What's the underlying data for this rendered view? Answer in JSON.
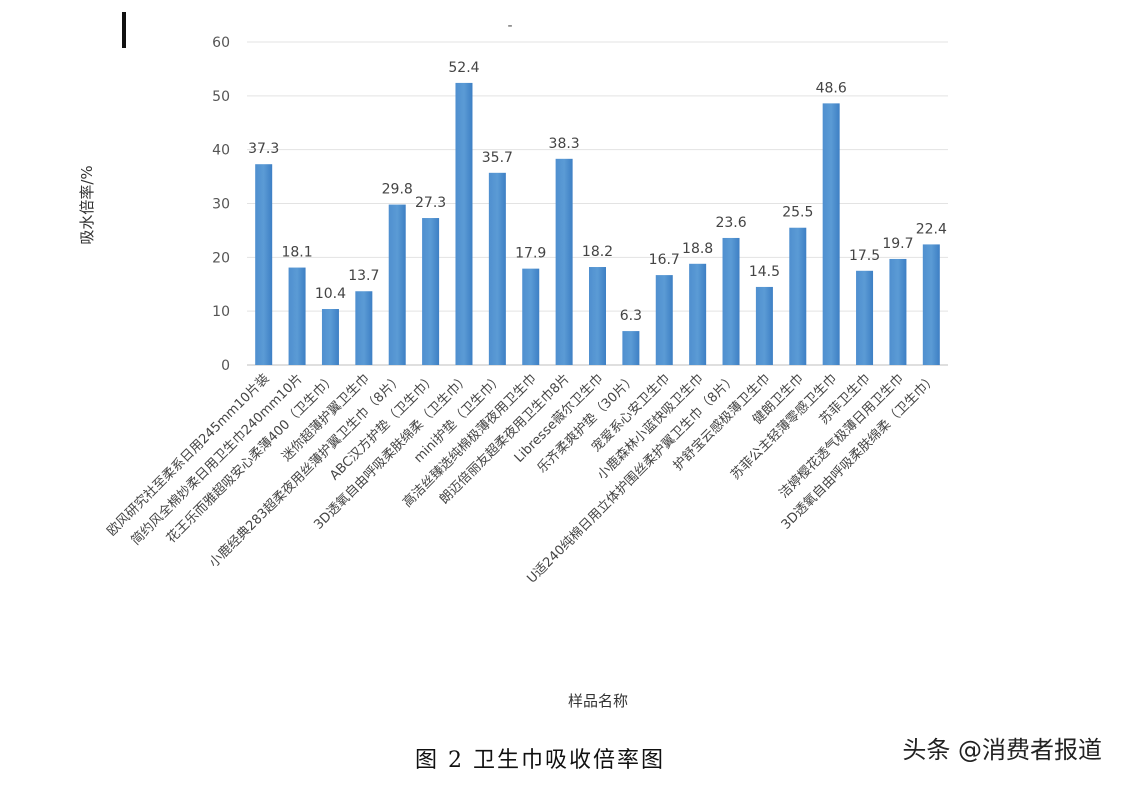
{
  "chart_data": {
    "type": "bar",
    "title": "-",
    "ylabel": "吸水倍率/%",
    "xlabel": "样品名称",
    "ylim": [
      0,
      60
    ],
    "yticks": [
      0,
      10,
      20,
      30,
      40,
      50,
      60
    ],
    "grid": true,
    "bar_color": "#5b9bd5",
    "categories": [
      "欧风研究社至柔系日用245mm10片装",
      "简约风全棉妙柔日用卫生巾240mm10片",
      "花王乐而雅超吸安心柔薄400（卫生巾）",
      "迷你超薄护翼卫生巾",
      "小鹿经典283超柔夜用丝薄护翼卫生巾（8片）",
      "ABC汉方护垫（卫生巾）",
      "3D透氧自由呼吸柔肤绵柔（卫生巾）",
      "mini护垫（卫生巾）",
      "高洁丝臻选纯棉极薄夜用卫生巾",
      "朗迈倍丽友超柔夜用卫生巾8片",
      "Libresse薇尔卫生巾",
      "乐齐柔爽护垫（30片）",
      "宠爱系心安卫生巾",
      "小鹿森林小蓝快吸卫生巾",
      "U适240纯棉日用立体护围丝柔护翼卫生巾（8片）",
      "护舒宝云感极薄卫生巾",
      "健朗卫生巾",
      "苏菲公主轻薄零感卫生巾",
      "苏菲卫生巾",
      "洁婷樱花透气极薄日用卫生巾",
      "3D透氧自由呼吸柔肤绵柔（卫生巾）"
    ],
    "values": [
      37.3,
      18.1,
      10.4,
      13.7,
      29.8,
      27.3,
      52.4,
      35.7,
      17.9,
      38.3,
      18.2,
      6.3,
      16.7,
      18.8,
      23.6,
      14.5,
      25.5,
      48.6,
      17.5,
      19.7,
      22.4
    ],
    "labels": [
      "37.3",
      "18.1",
      "10.4",
      "13.7",
      "29.8",
      "27.3",
      "52.4",
      "35.7",
      "17.9",
      "38.3",
      "18.2",
      "6.3",
      "16.7",
      "18.8",
      "23.6",
      "14.5",
      "25.5",
      "48.6",
      "17.5",
      "19.7",
      "22.4"
    ]
  },
  "caption": "图 2   卫生巾吸收倍率图",
  "watermark": "头条 @消费者报道"
}
